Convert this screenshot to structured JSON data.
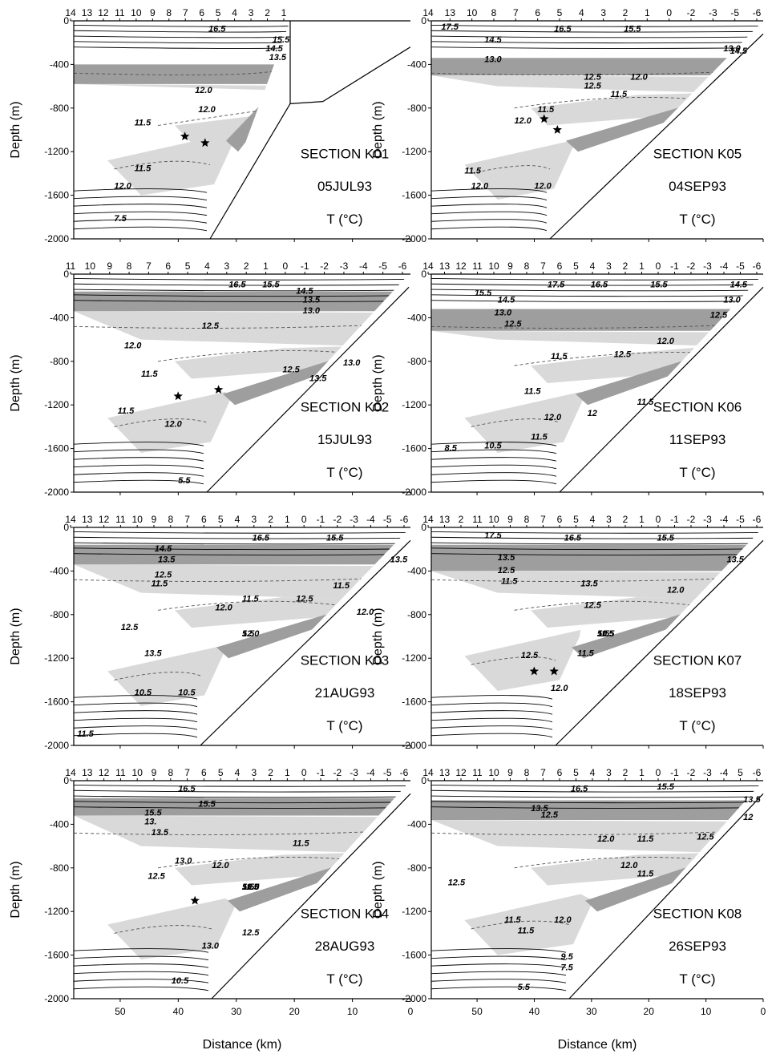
{
  "figure": {
    "ylabel": "Depth (m)",
    "xlabel": "Distance (km)",
    "y_tick_labels": [
      "0",
      "-400",
      "-800",
      "-1200",
      "-1600",
      "-2000"
    ],
    "x_tick_labels": [
      "50",
      "40",
      "30",
      "20",
      "10",
      "0"
    ],
    "units_label": "T (°C)"
  },
  "chart_data": [
    {
      "type": "contour",
      "section": "SECTION K01",
      "date": "05JUL93",
      "units": "T (°C)",
      "station_labels": [
        "14",
        "13",
        "12",
        "11",
        "10",
        "9",
        "8",
        "7",
        "6",
        "5",
        "4",
        "3",
        "2",
        "1"
      ],
      "contour_labels": [
        "16.5",
        "15.5",
        "14.5",
        "13.5",
        "12.0",
        "11.5",
        "12.0",
        "11.5",
        "12.0",
        "7.5"
      ],
      "ylim": [
        -2000,
        0
      ],
      "xlim": [
        58,
        0
      ]
    },
    {
      "type": "contour",
      "section": "SECTION K05",
      "date": "04SEP93",
      "units": "T (°C)",
      "station_labels": [
        "14",
        "13",
        "10",
        "8",
        "7",
        "6",
        "5",
        "4",
        "3",
        "2",
        "1",
        "0",
        "-2",
        "-3",
        "-5",
        "-6"
      ],
      "contour_labels": [
        "17.5",
        "16.5",
        "15.5",
        "14.5",
        "14.5",
        "13.0",
        "12.5",
        "12.0",
        "11.5",
        "13.0",
        "12.5",
        "12.0",
        "11.5",
        "11.5",
        "12.0",
        "12.0"
      ],
      "ylim": [
        -2000,
        0
      ],
      "xlim": [
        58,
        0
      ]
    },
    {
      "type": "contour",
      "section": "SECTION K02",
      "date": "15JUL93",
      "units": "T (°C)",
      "station_labels": [
        "11",
        "10",
        "9",
        "8",
        "7",
        "6",
        "5",
        "4",
        "3",
        "2",
        "1",
        "0",
        "-1",
        "-2",
        "-3",
        "-4",
        "-5",
        "-6"
      ],
      "contour_labels": [
        "16.5",
        "15.5",
        "14.5",
        "13.5",
        "13.0",
        "12.5",
        "12.0",
        "13.0",
        "12.5",
        "13.5",
        "11.5",
        "11.5",
        "12.0",
        "5.5"
      ],
      "ylim": [
        -2000,
        0
      ],
      "xlim": [
        58,
        0
      ]
    },
    {
      "type": "contour",
      "section": "SECTION K06",
      "date": "11SEP93",
      "units": "T (°C)",
      "station_labels": [
        "14",
        "13",
        "12",
        "11",
        "10",
        "9",
        "8",
        "7",
        "6",
        "5",
        "4",
        "3",
        "2",
        "1",
        "0",
        "-1",
        "-2",
        "-3",
        "-4",
        "-5",
        "-6"
      ],
      "contour_labels": [
        "17.5",
        "16.5",
        "15.5",
        "14.5",
        "15.5",
        "14.5",
        "13.0",
        "12.5",
        "13.0",
        "12.5",
        "11.5",
        "12.0",
        "11.5",
        "12.5",
        "11.5",
        "12.0",
        "12",
        "8.5",
        "10.5",
        "11.5"
      ],
      "ylim": [
        -2000,
        0
      ],
      "xlim": [
        58,
        0
      ]
    },
    {
      "type": "contour",
      "section": "SECTION K03",
      "date": "21AUG93",
      "units": "T (°C)",
      "station_labels": [
        "14",
        "13",
        "12",
        "11",
        "10",
        "9",
        "8",
        "7",
        "6",
        "5",
        "4",
        "3",
        "2",
        "1",
        "0",
        "-1",
        "-2",
        "-3",
        "-4",
        "-5",
        "-6"
      ],
      "contour_labels": [
        "16.5",
        "15.5",
        "14.5",
        "13.5",
        "13.5",
        "12.5",
        "11.5",
        "12.0",
        "11.5",
        "12.5",
        "11.5",
        "12.0",
        "12.5",
        "13.5",
        "10.5",
        "10.5",
        "11.5",
        "12.0",
        "5.5"
      ],
      "ylim": [
        -2000,
        0
      ],
      "xlim": [
        58,
        0
      ]
    },
    {
      "type": "contour",
      "section": "SECTION K07",
      "date": "18SEP93",
      "units": "T (°C)",
      "station_labels": [
        "14",
        "13",
        "2",
        "11",
        "10",
        "9",
        "8",
        "7",
        "6",
        "5",
        "4",
        "3",
        "2",
        "1",
        "0",
        "-1",
        "-2",
        "-3",
        "-4",
        "-5",
        "-6"
      ],
      "contour_labels": [
        "17.5",
        "16.5",
        "15.5",
        "13.5",
        "13.5",
        "12.5",
        "11.5",
        "13.5",
        "12.5",
        "12.0",
        "12.5",
        "11.5",
        "12.0",
        "10.5",
        "11.5",
        "5.5"
      ],
      "ylim": [
        -2000,
        0
      ],
      "xlim": [
        58,
        0
      ]
    },
    {
      "type": "contour",
      "section": "SECTION K04",
      "date": "28AUG93",
      "units": "T (°C)",
      "station_labels": [
        "14",
        "13",
        "12",
        "11",
        "10",
        "9",
        "8",
        "7",
        "6",
        "5",
        "4",
        "3",
        "2",
        "1",
        "0",
        "-1",
        "-2",
        "-3",
        "-4",
        "-5",
        "-6"
      ],
      "contour_labels": [
        "16.5",
        "15.5",
        "15.5",
        "13.",
        "13.5",
        "13.0",
        "12.5",
        "12.0",
        "11.5",
        "12.5",
        "13.0",
        "10.5",
        "12.0",
        "10.5",
        "12.0",
        "11.5",
        "5.5"
      ],
      "ylim": [
        -2000,
        0
      ],
      "xlim": [
        58,
        0
      ]
    },
    {
      "type": "contour",
      "section": "SECTION K08",
      "date": "26SEP93",
      "units": "T (°C)",
      "station_labels": [
        "14",
        "13",
        "12",
        "11",
        "10",
        "9",
        "8",
        "7",
        "6",
        "5",
        "4",
        "3",
        "2",
        "1",
        "0",
        "-1",
        "-2",
        "-3",
        "-4",
        "5",
        "-6"
      ],
      "contour_labels": [
        "16.5",
        "15.5",
        "13.5",
        "13.5",
        "12.5",
        "12",
        "12.0",
        "11.5",
        "12.5",
        "12.0",
        "11.5",
        "12.5",
        "11.5",
        "11.5",
        "12.0",
        "9.5",
        "7.5",
        "5.5"
      ],
      "ylim": [
        -2000,
        0
      ],
      "xlim": [
        58,
        0
      ]
    }
  ]
}
